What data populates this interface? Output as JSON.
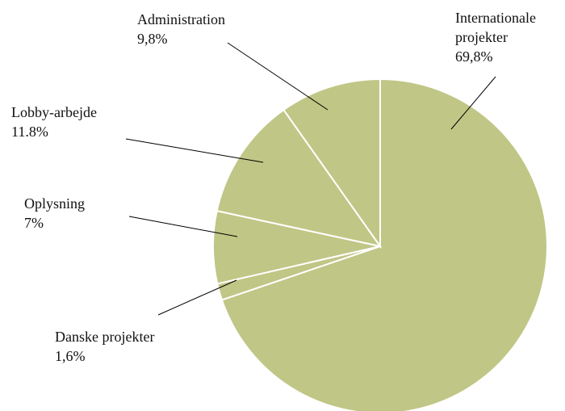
{
  "chart_data": {
    "type": "pie",
    "title": "",
    "colors": {
      "slice_fill": "#c0c685",
      "slice_border": "#ffffff",
      "leader_line": "#000000",
      "text": "#111111",
      "background": "#ffffff"
    },
    "slices": [
      {
        "label_lines": [
          "Internationale",
          "projekter"
        ],
        "value_label": "69,8%",
        "value": 69.8
      },
      {
        "label_lines": [
          "Danske projekter"
        ],
        "value_label": "1,6%",
        "value": 1.6
      },
      {
        "label_lines": [
          "Oplysning"
        ],
        "value_label": "7%",
        "value": 7.0
      },
      {
        "label_lines": [
          "Lobby-arbejde"
        ],
        "value_label": "11.8%",
        "value": 11.8
      },
      {
        "label_lines": [
          "Administration"
        ],
        "value_label": "9,8%",
        "value": 9.8
      }
    ]
  }
}
